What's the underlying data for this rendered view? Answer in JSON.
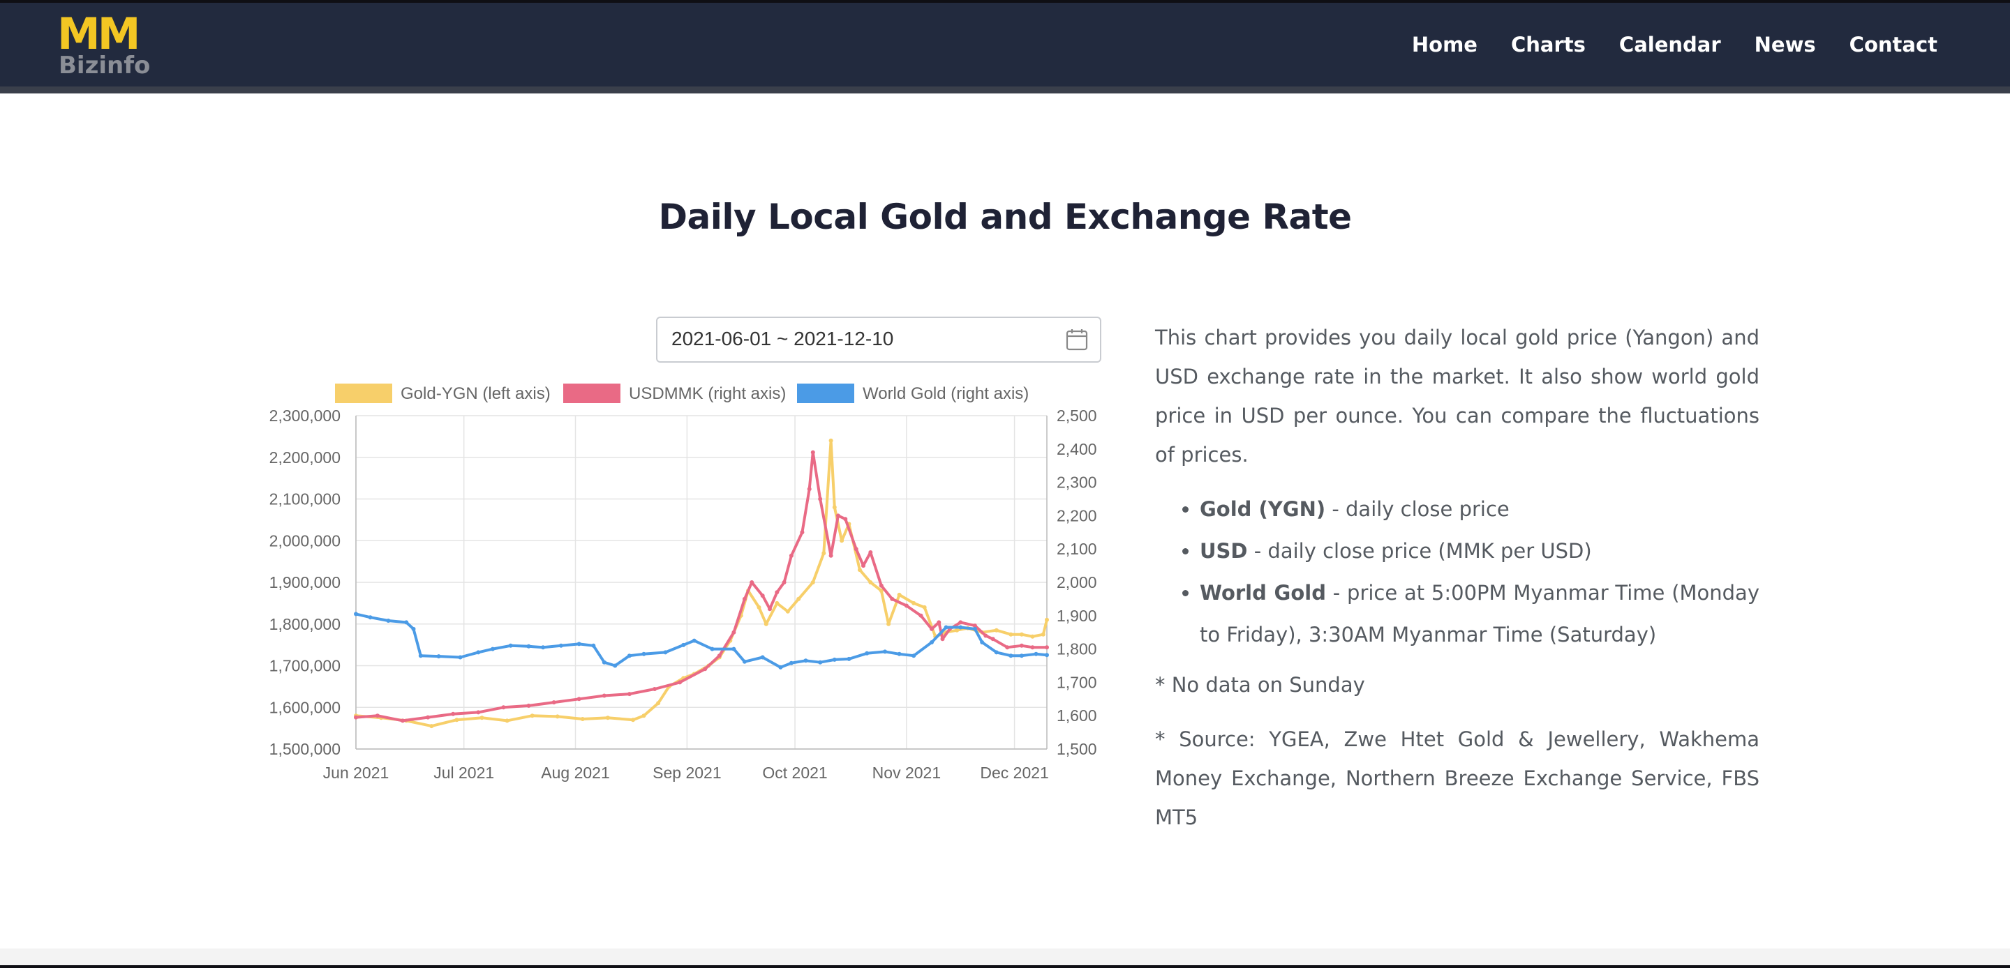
{
  "brand": {
    "logo_top": "MM",
    "logo_bottom": "Bizinfo",
    "accent": "#f3c623"
  },
  "nav": [
    "Home",
    "Charts",
    "Calendar",
    "News",
    "Contact"
  ],
  "page_title": "Daily Local Gold and Exchange Rate",
  "date_range": {
    "value": "2021-06-01 ~ 2021-12-10",
    "icon": "calendar-icon"
  },
  "description": {
    "intro": "This chart provides you daily local gold price (Yangon) and USD exchange rate in the market. It also show world gold price in USD per ounce. You can compare the fluctuations of prices.",
    "bullets": [
      {
        "term": "Gold (YGN)",
        "text": " - daily close price"
      },
      {
        "term": "USD",
        "text": " - daily close price (MMK per USD)"
      },
      {
        "term": "World Gold",
        "text": " - price at 5:00PM Myanmar Time (Monday to Friday), 3:30AM Myanmar Time (Saturday)"
      }
    ],
    "note": "* No data on Sunday",
    "source": "* Source: YGEA, Zwe Htet Gold & Jewellery, Wakhema Money Exchange, Northern Breeze Exchange Service, FBS MT5"
  },
  "chart_data": {
    "type": "line",
    "x_start": "2021-06-01",
    "x_end": "2021-12-10",
    "x_tick_labels": [
      "Jun 2021",
      "Jul 2021",
      "Aug 2021",
      "Sep 2021",
      "Oct 2021",
      "Nov 2021",
      "Dec 2021"
    ],
    "x_tick_dates": [
      "2021-06-01",
      "2021-07-01",
      "2021-08-01",
      "2021-09-01",
      "2021-10-01",
      "2021-11-01",
      "2021-12-01"
    ],
    "y_left": {
      "range": [
        1500000,
        2300000
      ],
      "ticks": [
        "1,500,000",
        "1,600,000",
        "1,700,000",
        "1,800,000",
        "1,900,000",
        "2,000,000",
        "2,100,000",
        "2,200,000",
        "2,300,000"
      ]
    },
    "y_right": {
      "range": [
        1500,
        2500
      ],
      "ticks": [
        "1,500",
        "1,600",
        "1,700",
        "1,800",
        "1,900",
        "2,000",
        "2,100",
        "2,200",
        "2,300",
        "2,400",
        "2,500"
      ]
    },
    "grid": true,
    "legend_position": "top",
    "series": [
      {
        "name": "Gold-YGN (left axis)",
        "axis": "left",
        "color": "#f7cf6a",
        "points": [
          [
            "2021-06-01",
            1580000
          ],
          [
            "2021-06-08",
            1575000
          ],
          [
            "2021-06-15",
            1568000
          ],
          [
            "2021-06-22",
            1555000
          ],
          [
            "2021-06-29",
            1570000
          ],
          [
            "2021-07-06",
            1575000
          ],
          [
            "2021-07-13",
            1568000
          ],
          [
            "2021-07-20",
            1580000
          ],
          [
            "2021-07-27",
            1578000
          ],
          [
            "2021-08-03",
            1572000
          ],
          [
            "2021-08-10",
            1575000
          ],
          [
            "2021-08-17",
            1570000
          ],
          [
            "2021-08-20",
            1580000
          ],
          [
            "2021-08-24",
            1610000
          ],
          [
            "2021-08-27",
            1650000
          ],
          [
            "2021-08-31",
            1670000
          ],
          [
            "2021-09-03",
            1680000
          ],
          [
            "2021-09-07",
            1700000
          ],
          [
            "2021-09-10",
            1720000
          ],
          [
            "2021-09-13",
            1760000
          ],
          [
            "2021-09-16",
            1820000
          ],
          [
            "2021-09-18",
            1880000
          ],
          [
            "2021-09-21",
            1840000
          ],
          [
            "2021-09-23",
            1800000
          ],
          [
            "2021-09-26",
            1850000
          ],
          [
            "2021-09-29",
            1830000
          ],
          [
            "2021-10-02",
            1860000
          ],
          [
            "2021-10-06",
            1900000
          ],
          [
            "2021-10-09",
            1970000
          ],
          [
            "2021-10-11",
            2240000
          ],
          [
            "2021-10-12",
            2080000
          ],
          [
            "2021-10-14",
            2000000
          ],
          [
            "2021-10-16",
            2040000
          ],
          [
            "2021-10-19",
            1930000
          ],
          [
            "2021-10-22",
            1900000
          ],
          [
            "2021-10-25",
            1880000
          ],
          [
            "2021-10-27",
            1800000
          ],
          [
            "2021-10-30",
            1870000
          ],
          [
            "2021-11-03",
            1850000
          ],
          [
            "2021-11-06",
            1840000
          ],
          [
            "2021-11-09",
            1770000
          ],
          [
            "2021-11-12",
            1780000
          ],
          [
            "2021-11-15",
            1785000
          ],
          [
            "2021-11-18",
            1790000
          ],
          [
            "2021-11-22",
            1780000
          ],
          [
            "2021-11-26",
            1785000
          ],
          [
            "2021-11-30",
            1775000
          ],
          [
            "2021-12-03",
            1775000
          ],
          [
            "2021-12-06",
            1770000
          ],
          [
            "2021-12-09",
            1775000
          ],
          [
            "2021-12-10",
            1810000
          ]
        ]
      },
      {
        "name": "USDMMK (right axis)",
        "axis": "right",
        "color": "#e96a85",
        "points": [
          [
            "2021-06-01",
            1595
          ],
          [
            "2021-06-07",
            1600
          ],
          [
            "2021-06-14",
            1585
          ],
          [
            "2021-06-21",
            1595
          ],
          [
            "2021-06-28",
            1605
          ],
          [
            "2021-07-05",
            1610
          ],
          [
            "2021-07-12",
            1625
          ],
          [
            "2021-07-19",
            1630
          ],
          [
            "2021-07-26",
            1640
          ],
          [
            "2021-08-02",
            1650
          ],
          [
            "2021-08-09",
            1660
          ],
          [
            "2021-08-16",
            1665
          ],
          [
            "2021-08-23",
            1680
          ],
          [
            "2021-08-30",
            1700
          ],
          [
            "2021-09-06",
            1740
          ],
          [
            "2021-09-10",
            1780
          ],
          [
            "2021-09-14",
            1850
          ],
          [
            "2021-09-17",
            1950
          ],
          [
            "2021-09-19",
            2000
          ],
          [
            "2021-09-22",
            1960
          ],
          [
            "2021-09-24",
            1920
          ],
          [
            "2021-09-26",
            1970
          ],
          [
            "2021-09-28",
            2000
          ],
          [
            "2021-09-30",
            2080
          ],
          [
            "2021-10-03",
            2150
          ],
          [
            "2021-10-05",
            2280
          ],
          [
            "2021-10-06",
            2390
          ],
          [
            "2021-10-08",
            2250
          ],
          [
            "2021-10-11",
            2080
          ],
          [
            "2021-10-13",
            2200
          ],
          [
            "2021-10-15",
            2190
          ],
          [
            "2021-10-18",
            2100
          ],
          [
            "2021-10-20",
            2050
          ],
          [
            "2021-10-22",
            2090
          ],
          [
            "2021-10-25",
            1990
          ],
          [
            "2021-10-28",
            1950
          ],
          [
            "2021-11-01",
            1930
          ],
          [
            "2021-11-05",
            1900
          ],
          [
            "2021-11-08",
            1860
          ],
          [
            "2021-11-10",
            1880
          ],
          [
            "2021-11-11",
            1830
          ],
          [
            "2021-11-13",
            1860
          ],
          [
            "2021-11-16",
            1880
          ],
          [
            "2021-11-20",
            1870
          ],
          [
            "2021-11-23",
            1840
          ],
          [
            "2021-11-25",
            1830
          ],
          [
            "2021-11-29",
            1805
          ],
          [
            "2021-12-03",
            1810
          ],
          [
            "2021-12-06",
            1805
          ],
          [
            "2021-12-10",
            1805
          ]
        ]
      },
      {
        "name": "World Gold (right axis)",
        "axis": "right",
        "color": "#4b9be6",
        "points": [
          [
            "2021-06-01",
            1905
          ],
          [
            "2021-06-05",
            1895
          ],
          [
            "2021-06-10",
            1885
          ],
          [
            "2021-06-15",
            1880
          ],
          [
            "2021-06-17",
            1860
          ],
          [
            "2021-06-19",
            1780
          ],
          [
            "2021-06-24",
            1778
          ],
          [
            "2021-06-30",
            1775
          ],
          [
            "2021-07-05",
            1790
          ],
          [
            "2021-07-09",
            1800
          ],
          [
            "2021-07-14",
            1810
          ],
          [
            "2021-07-19",
            1808
          ],
          [
            "2021-07-23",
            1805
          ],
          [
            "2021-07-28",
            1810
          ],
          [
            "2021-08-02",
            1815
          ],
          [
            "2021-08-06",
            1810
          ],
          [
            "2021-08-09",
            1760
          ],
          [
            "2021-08-12",
            1750
          ],
          [
            "2021-08-16",
            1780
          ],
          [
            "2021-08-20",
            1785
          ],
          [
            "2021-08-26",
            1790
          ],
          [
            "2021-08-31",
            1812
          ],
          [
            "2021-09-03",
            1825
          ],
          [
            "2021-09-08",
            1800
          ],
          [
            "2021-09-14",
            1800
          ],
          [
            "2021-09-17",
            1762
          ],
          [
            "2021-09-22",
            1775
          ],
          [
            "2021-09-27",
            1745
          ],
          [
            "2021-09-30",
            1758
          ],
          [
            "2021-10-04",
            1765
          ],
          [
            "2021-10-08",
            1760
          ],
          [
            "2021-10-12",
            1768
          ],
          [
            "2021-10-16",
            1770
          ],
          [
            "2021-10-21",
            1787
          ],
          [
            "2021-10-26",
            1792
          ],
          [
            "2021-10-30",
            1785
          ],
          [
            "2021-11-03",
            1780
          ],
          [
            "2021-11-08",
            1820
          ],
          [
            "2021-11-12",
            1865
          ],
          [
            "2021-11-16",
            1865
          ],
          [
            "2021-11-20",
            1860
          ],
          [
            "2021-11-22",
            1820
          ],
          [
            "2021-11-26",
            1790
          ],
          [
            "2021-11-30",
            1780
          ],
          [
            "2021-12-03",
            1780
          ],
          [
            "2021-12-07",
            1785
          ],
          [
            "2021-12-10",
            1782
          ]
        ]
      }
    ]
  }
}
